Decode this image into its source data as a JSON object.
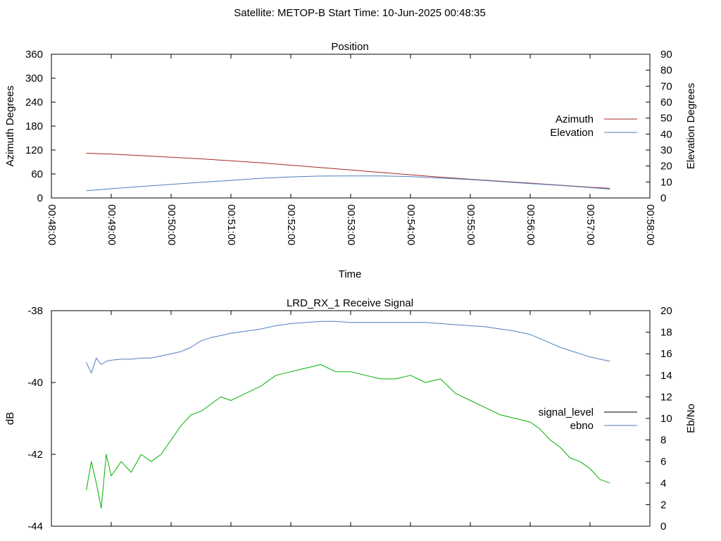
{
  "suptitle": "Satellite: METOP-B    Start Time: 10-Jun-2025 00:48:35",
  "chart_data": [
    {
      "type": "line",
      "title": "Position",
      "xlabel": "Time",
      "ylabel": "Azimuth Degrees",
      "y2label": "Elevation Degrees",
      "xlim": [
        "00:48:00",
        "00:58:00"
      ],
      "x_ticks": [
        "00:48:00",
        "00:49:00",
        "00:50:00",
        "00:51:00",
        "00:52:00",
        "00:53:00",
        "00:54:00",
        "00:55:00",
        "00:56:00",
        "00:57:00",
        "00:58:00"
      ],
      "ylim": [
        0,
        360
      ],
      "y_ticks": [
        "0",
        "60",
        "120",
        "180",
        "240",
        "300",
        "360"
      ],
      "y2lim": [
        0,
        90
      ],
      "y2_ticks": [
        "0",
        "10",
        "20",
        "30",
        "40",
        "50",
        "60",
        "70",
        "80",
        "90"
      ],
      "legend_position": "right",
      "grid": false,
      "series": [
        {
          "name": "Azimuth",
          "axis": "left",
          "color": "#a52a2a",
          "x": [
            "00:48:35",
            "00:49:00",
            "00:49:30",
            "00:50:00",
            "00:50:30",
            "00:51:00",
            "00:51:30",
            "00:52:00",
            "00:52:30",
            "00:53:00",
            "00:53:30",
            "00:54:00",
            "00:54:30",
            "00:55:00",
            "00:55:30",
            "00:56:00",
            "00:56:30",
            "00:57:00",
            "00:57:20"
          ],
          "values": [
            112,
            110,
            106,
            102,
            98,
            93,
            88,
            82,
            76,
            70,
            64,
            58,
            52,
            47,
            42,
            37,
            32,
            27,
            24
          ]
        },
        {
          "name": "Elevation",
          "axis": "right",
          "color": "#4f7fbf",
          "x": [
            "00:48:35",
            "00:49:00",
            "00:49:30",
            "00:50:00",
            "00:50:30",
            "00:51:00",
            "00:51:30",
            "00:52:00",
            "00:52:30",
            "00:53:00",
            "00:53:30",
            "00:54:00",
            "00:54:30",
            "00:55:00",
            "00:55:30",
            "00:56:00",
            "00:56:30",
            "00:57:00",
            "00:57:20"
          ],
          "values": [
            4.5,
            5.8,
            7.2,
            8.5,
            9.8,
            11.0,
            12.3,
            13.2,
            13.7,
            13.8,
            13.8,
            13.4,
            12.5,
            11.5,
            10.3,
            9.0,
            7.8,
            6.5,
            5.5
          ]
        }
      ]
    },
    {
      "type": "line",
      "title": "LRD_RX_1 Receive Signal",
      "xlabel": "",
      "ylabel": "dB",
      "y2label": "Eb/No",
      "xlim": [
        "00:48:00",
        "00:58:00"
      ],
      "ylim": [
        -44,
        -38
      ],
      "y_ticks": [
        "-38",
        "-40",
        "-42",
        "-44"
      ],
      "y2lim": [
        0,
        20
      ],
      "y2_ticks": [
        "0",
        "2",
        "4",
        "6",
        "8",
        "10",
        "12",
        "14",
        "16",
        "18",
        "20"
      ],
      "legend_position": "right",
      "grid": false,
      "series": [
        {
          "name": "signal_level",
          "axis": "left",
          "color": "#00b000",
          "legend_color": "#000000",
          "x": [
            "00:48:35",
            "00:48:40",
            "00:48:45",
            "00:48:50",
            "00:48:55",
            "00:49:00",
            "00:49:10",
            "00:49:20",
            "00:49:30",
            "00:49:40",
            "00:49:50",
            "00:50:00",
            "00:50:10",
            "00:50:20",
            "00:50:30",
            "00:50:40",
            "00:50:50",
            "00:51:00",
            "00:51:15",
            "00:51:30",
            "00:51:45",
            "00:52:00",
            "00:52:15",
            "00:52:30",
            "00:52:45",
            "00:53:00",
            "00:53:15",
            "00:53:30",
            "00:53:45",
            "00:54:00",
            "00:54:15",
            "00:54:30",
            "00:54:45",
            "00:55:00",
            "00:55:15",
            "00:55:30",
            "00:55:45",
            "00:56:00",
            "00:56:10",
            "00:56:20",
            "00:56:30",
            "00:56:40",
            "00:56:50",
            "00:57:00",
            "00:57:10",
            "00:57:20"
          ],
          "values": [
            -43.0,
            -42.2,
            -42.8,
            -43.5,
            -42.0,
            -42.6,
            -42.2,
            -42.5,
            -42.0,
            -42.2,
            -42.0,
            -41.6,
            -41.2,
            -40.9,
            -40.8,
            -40.6,
            -40.4,
            -40.5,
            -40.3,
            -40.1,
            -39.8,
            -39.7,
            -39.6,
            -39.5,
            -39.7,
            -39.7,
            -39.8,
            -39.9,
            -39.9,
            -39.8,
            -40.0,
            -39.9,
            -40.3,
            -40.5,
            -40.7,
            -40.9,
            -41.0,
            -41.1,
            -41.3,
            -41.6,
            -41.8,
            -42.1,
            -42.2,
            -42.4,
            -42.7,
            -42.8
          ]
        },
        {
          "name": "ebno",
          "axis": "right",
          "color": "#4f7fbf",
          "x": [
            "00:48:35",
            "00:48:40",
            "00:48:45",
            "00:48:50",
            "00:48:55",
            "00:49:00",
            "00:49:10",
            "00:49:20",
            "00:49:30",
            "00:49:40",
            "00:49:50",
            "00:50:00",
            "00:50:10",
            "00:50:20",
            "00:50:30",
            "00:50:40",
            "00:50:50",
            "00:51:00",
            "00:51:15",
            "00:51:30",
            "00:51:45",
            "00:52:00",
            "00:52:15",
            "00:52:30",
            "00:52:45",
            "00:53:00",
            "00:53:15",
            "00:53:30",
            "00:53:45",
            "00:54:00",
            "00:54:15",
            "00:54:30",
            "00:54:45",
            "00:55:00",
            "00:55:15",
            "00:55:30",
            "00:55:45",
            "00:56:00",
            "00:56:10",
            "00:56:20",
            "00:56:30",
            "00:56:40",
            "00:56:50",
            "00:57:00",
            "00:57:10",
            "00:57:20"
          ],
          "values": [
            15.2,
            14.2,
            15.6,
            15.0,
            15.3,
            15.4,
            15.5,
            15.5,
            15.6,
            15.6,
            15.8,
            16.0,
            16.2,
            16.6,
            17.2,
            17.5,
            17.7,
            17.9,
            18.1,
            18.3,
            18.6,
            18.8,
            18.9,
            19.0,
            19.0,
            18.9,
            18.9,
            18.9,
            18.9,
            18.9,
            18.9,
            18.8,
            18.7,
            18.6,
            18.5,
            18.3,
            18.1,
            17.8,
            17.4,
            17.0,
            16.6,
            16.3,
            16.0,
            15.7,
            15.5,
            15.3
          ]
        }
      ]
    }
  ]
}
